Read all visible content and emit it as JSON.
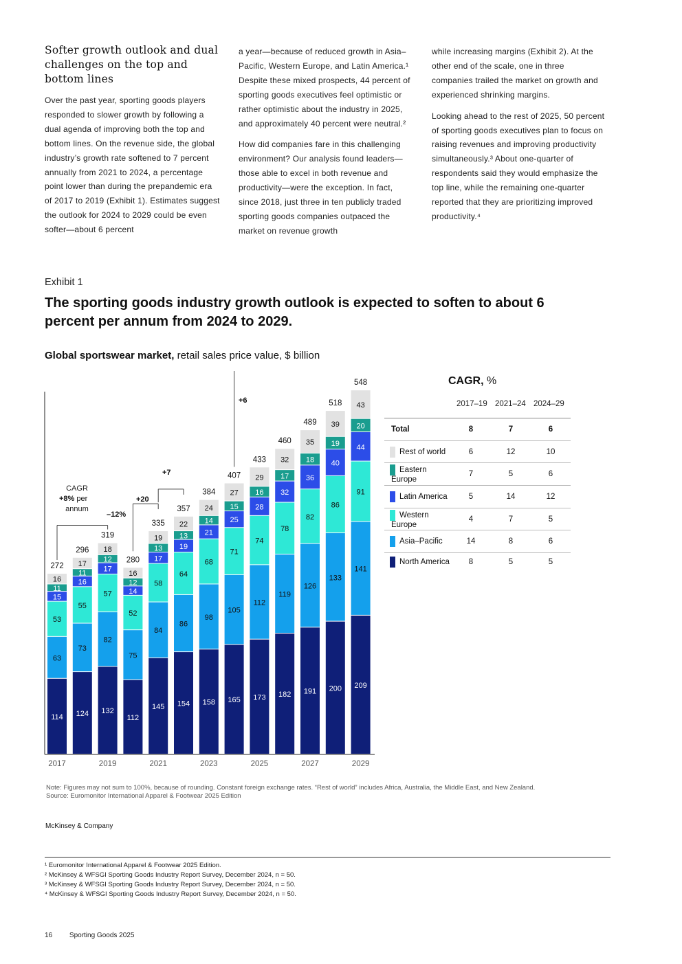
{
  "article": {
    "heading": "Softer growth outlook and dual challenges on the top and bottom lines",
    "col1_p1": "Over the past year, sporting goods players responded to slower growth by following a dual agenda of improving both the top and bottom lines. On the revenue side, the global industry’s growth rate softened to 7 percent annually from 2021 to 2024, a percentage point lower than during the prepandemic era of 2017 to 2019 (Exhibit 1). Estimates suggest the outlook for 2024 to 2029 could be even softer—about 6 percent",
    "col2_p1": "a year—because of reduced growth in Asia–Pacific, Western Europe, and Latin America.¹ Despite these mixed prospects, 44 percent of sporting goods executives feel optimistic or rather optimistic about the industry in 2025, and approximately 40 percent were neutral.²",
    "col2_p2": "How did companies fare in this challenging environment? Our analysis found leaders—those able to excel in both revenue and productivity—were the exception. In fact, since 2018, just three in ten publicly traded sporting goods companies outpaced the market on revenue growth",
    "col3_p1": "while increasing margins (Exhibit 2). At the other end of the scale, one in three companies trailed the market on growth and experienced shrinking margins.",
    "col3_p2": "Looking ahead to the rest of 2025, 50 percent of sporting goods executives plan to focus on raising revenues and improving productivity simultaneously.³ About one-quarter of respondents said they would emphasize the top line, while the remaining one-quarter reported that they are prioritizing improved productivity.⁴"
  },
  "exhibit": {
    "label": "Exhibit 1",
    "title": "The sporting goods industry growth outlook is expected to soften to about 6 percent per annum from 2024 to 2029.",
    "subtitle_bold": "Global sportswear market,",
    "subtitle_rest": " retail sales price value, $ billion"
  },
  "chart_data": {
    "type": "bar",
    "stacked": true,
    "categories": [
      "2017",
      "2018",
      "2019",
      "2020",
      "2021",
      "2022",
      "2023",
      "2024",
      "2025",
      "2026",
      "2027",
      "2028",
      "2029"
    ],
    "x_tick_labels": [
      "2017",
      "2019",
      "2021",
      "2023",
      "2025",
      "2027",
      "2029"
    ],
    "series": [
      {
        "name": "North America",
        "color": "#0f1f78",
        "values": [
          114,
          124,
          132,
          112,
          145,
          154,
          158,
          165,
          173,
          182,
          191,
          200,
          209
        ]
      },
      {
        "name": "Asia–Pacific",
        "color": "#14a0ec",
        "values": [
          63,
          73,
          82,
          75,
          84,
          86,
          98,
          105,
          112,
          119,
          126,
          133,
          141
        ]
      },
      {
        "name": "Western Europe",
        "color": "#2ee8d6",
        "values": [
          53,
          55,
          57,
          52,
          58,
          64,
          68,
          71,
          74,
          78,
          82,
          86,
          91
        ]
      },
      {
        "name": "Latin America",
        "color": "#2c4de8",
        "values": [
          15,
          16,
          17,
          14,
          17,
          19,
          21,
          25,
          28,
          32,
          36,
          40,
          44
        ]
      },
      {
        "name": "Eastern Europe",
        "color": "#1a9d8f",
        "values": [
          11,
          11,
          12,
          12,
          13,
          13,
          14,
          15,
          16,
          17,
          18,
          19,
          20
        ]
      },
      {
        "name": "Rest of world",
        "color": "#e2e2e2",
        "values": [
          16,
          17,
          18,
          16,
          19,
          22,
          24,
          27,
          29,
          32,
          35,
          39,
          43
        ]
      }
    ],
    "totals": [
      272,
      296,
      319,
      280,
      335,
      357,
      384,
      407,
      433,
      460,
      489,
      518,
      548
    ],
    "annotations": {
      "cagr_label": "CAGR",
      "cagr_value": "+8%",
      "cagr_unit": " per",
      "cagr_unit2": "annum",
      "drop_2020": "–12%",
      "growth_2021": "+20",
      "growth_2022": "+7",
      "growth_outlook": "+6"
    }
  },
  "cagr_table": {
    "title_bold": "CAGR,",
    "title_rest": " %",
    "headers": [
      "2017–19",
      "2021–24",
      "2024–29"
    ],
    "rows": [
      {
        "label": "Total",
        "values": [
          "8",
          "7",
          "6"
        ],
        "bold": true,
        "color": ""
      },
      {
        "label": "Rest of world",
        "values": [
          "6",
          "12",
          "10"
        ],
        "color": "#e2e2e2"
      },
      {
        "label": "Eastern Europe",
        "values": [
          "7",
          "5",
          "6"
        ],
        "color": "#1a9d8f"
      },
      {
        "label": "Latin America",
        "values": [
          "5",
          "14",
          "12"
        ],
        "color": "#2c4de8"
      },
      {
        "label": "Western Europe",
        "values": [
          "4",
          "7",
          "5"
        ],
        "color": "#2ee8d6"
      },
      {
        "label": "Asia–Pacific",
        "values": [
          "14",
          "8",
          "6"
        ],
        "color": "#14a0ec"
      },
      {
        "label": "North America",
        "values": [
          "8",
          "5",
          "5"
        ],
        "color": "#0f1f78"
      }
    ]
  },
  "notes": {
    "note": "Note: Figures may not sum to 100%, because of rounding. Constant foreign exchange rates. “Rest of world” includes Africa, Australia, the Middle East, and New Zealand.",
    "source": "Source: Euromonitor International Apparel & Footwear 2025 Edition",
    "brand": "McKinsey & Company"
  },
  "footnotes": [
    "¹ Euromonitor International Apparel & Footwear 2025 Edition.",
    "² McKinsey & WFSGI Sporting Goods Industry Report Survey, December 2024, n = 50.",
    "³ McKinsey & WFSGI Sporting Goods Industry Report Survey, December 2024, n = 50.",
    "⁴ McKinsey & WFSGI Sporting Goods Industry Report Survey, December 2024, n = 50."
  ],
  "page": {
    "number": "16",
    "title": "Sporting Goods 2025"
  }
}
